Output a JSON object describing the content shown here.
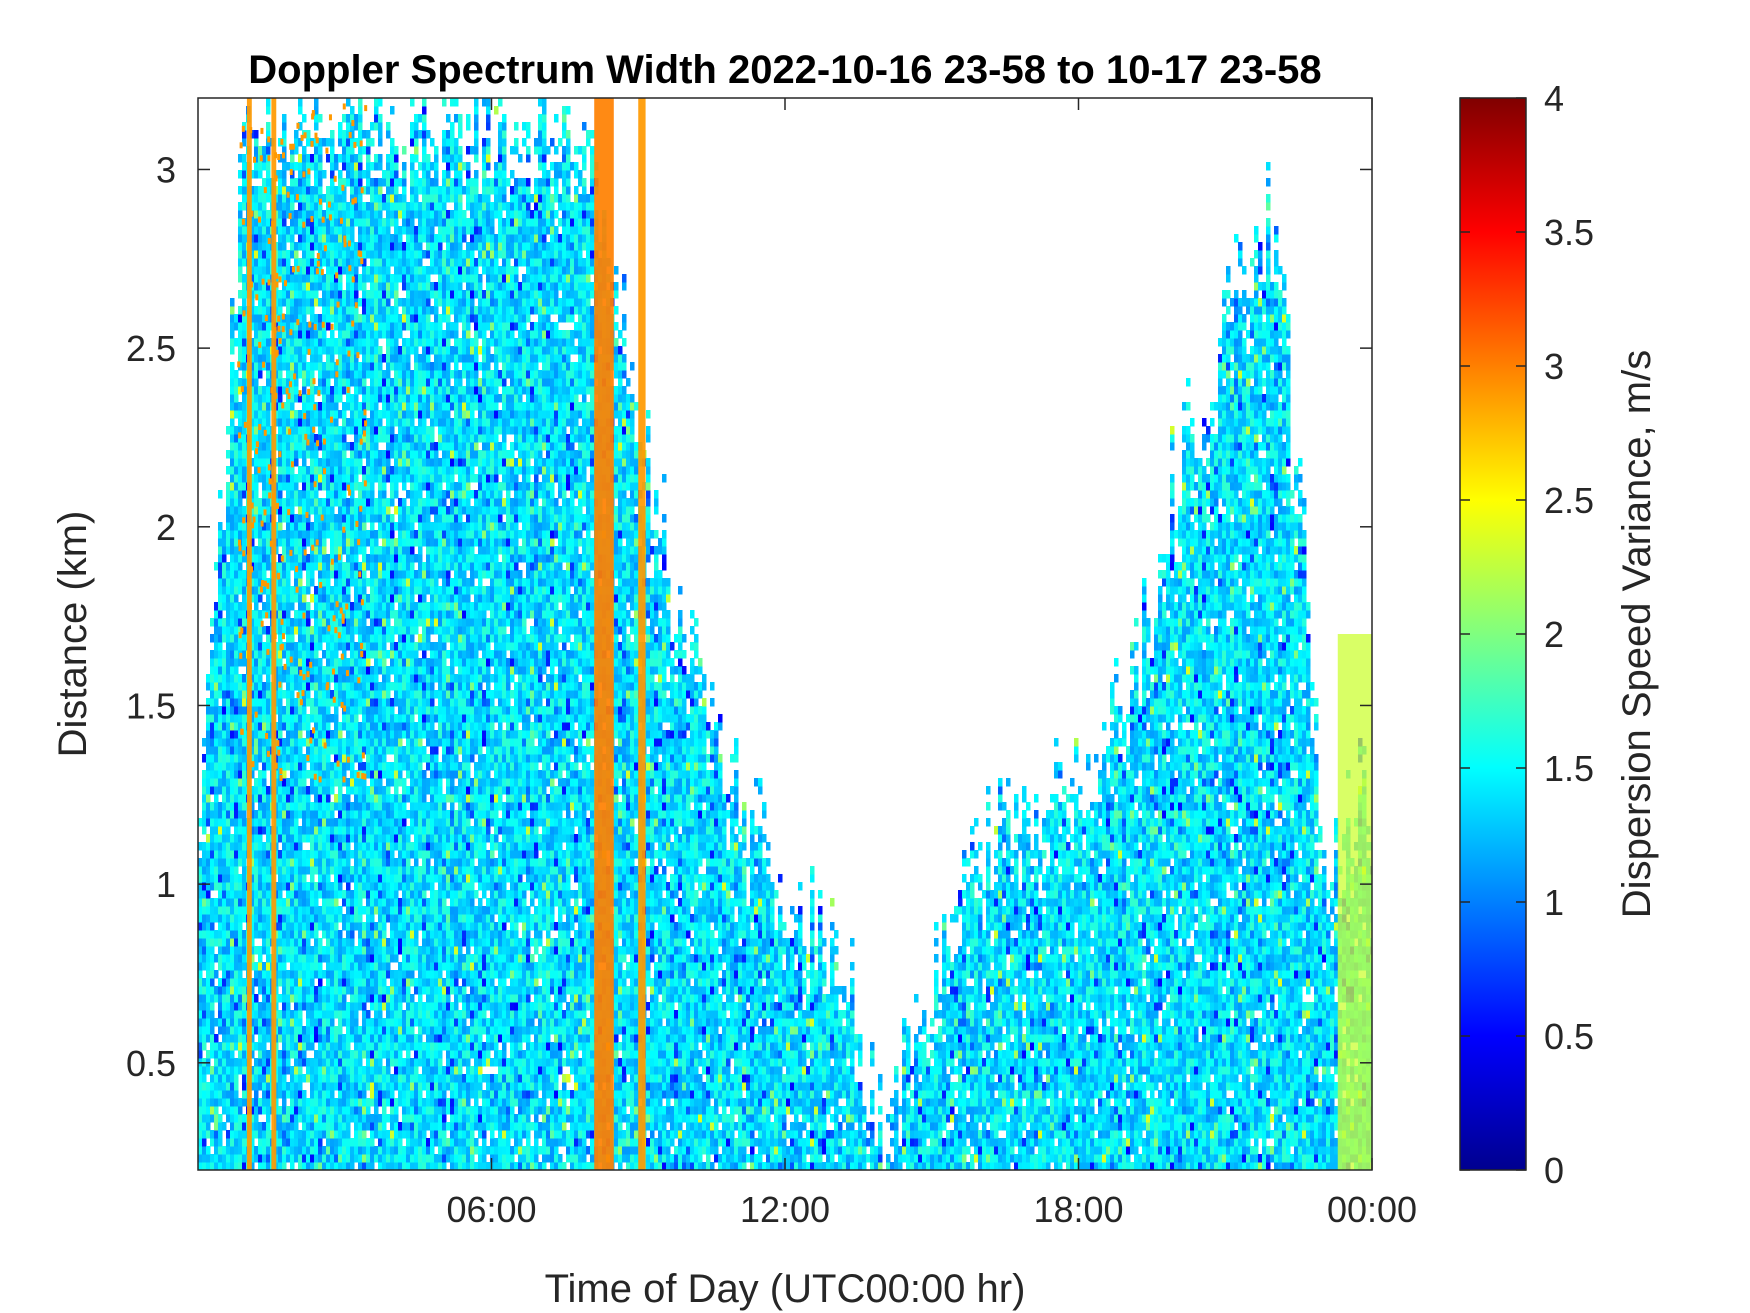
{
  "chart_data": {
    "type": "heatmap",
    "title": "Doppler Spectrum Width 2022-10-16 23-58 to 10-17 23-58",
    "xlabel": "Time of Day (UTC00:00 hr)",
    "ylabel": "Distance (km)",
    "colorbar_label": "Dispersion Speed Variance, m/s",
    "colormap": "jet",
    "xlim_hours": [
      0,
      24
    ],
    "ylim": [
      0.2,
      3.2
    ],
    "clim": [
      0,
      4
    ],
    "x_ticks": [
      {
        "value": 6,
        "label": "06:00"
      },
      {
        "value": 12,
        "label": "12:00"
      },
      {
        "value": 18,
        "label": "18:00"
      },
      {
        "value": 24,
        "label": "00:00"
      }
    ],
    "y_ticks": [
      {
        "value": 0.5,
        "label": "0.5"
      },
      {
        "value": 1,
        "label": "1"
      },
      {
        "value": 1.5,
        "label": "1.5"
      },
      {
        "value": 2,
        "label": "2"
      },
      {
        "value": 2.5,
        "label": "2.5"
      },
      {
        "value": 3,
        "label": "3"
      }
    ],
    "colorbar_ticks": [
      {
        "value": 0,
        "label": "0"
      },
      {
        "value": 0.5,
        "label": "0.5"
      },
      {
        "value": 1,
        "label": "1"
      },
      {
        "value": 1.5,
        "label": "1.5"
      },
      {
        "value": 2,
        "label": "2"
      },
      {
        "value": 2.5,
        "label": "2.5"
      },
      {
        "value": 3,
        "label": "3"
      },
      {
        "value": 3.5,
        "label": "3.5"
      },
      {
        "value": 4,
        "label": "4"
      }
    ],
    "data_top_km_by_hour": [
      {
        "hour": 0,
        "top_km": 1.1
      },
      {
        "hour": 1,
        "top_km": 3.2
      },
      {
        "hour": 2,
        "top_km": 3.2
      },
      {
        "hour": 3,
        "top_km": 3.2
      },
      {
        "hour": 4,
        "top_km": 3.2
      },
      {
        "hour": 5,
        "top_km": 3.2
      },
      {
        "hour": 6,
        "top_km": 3.2
      },
      {
        "hour": 7,
        "top_km": 3.2
      },
      {
        "hour": 8,
        "top_km": 3.2
      },
      {
        "hour": 9,
        "top_km": 2.3
      },
      {
        "hour": 10,
        "top_km": 1.7
      },
      {
        "hour": 11,
        "top_km": 1.3
      },
      {
        "hour": 12,
        "top_km": 1.0
      },
      {
        "hour": 13,
        "top_km": 0.9
      },
      {
        "hour": 14,
        "top_km": 0.3
      },
      {
        "hour": 15,
        "top_km": 0.8
      },
      {
        "hour": 16,
        "top_km": 1.1
      },
      {
        "hour": 17,
        "top_km": 1.2
      },
      {
        "hour": 18,
        "top_km": 1.4
      },
      {
        "hour": 19,
        "top_km": 1.6
      },
      {
        "hour": 20,
        "top_km": 2.2
      },
      {
        "hour": 21,
        "top_km": 2.6
      },
      {
        "hour": 22,
        "top_km": 3.0
      },
      {
        "hour": 23,
        "top_km": 1.1
      },
      {
        "hour": 24,
        "top_km": 1.3
      }
    ],
    "typical_value": 1.4,
    "orange_bands_hours": [
      {
        "start": 1.0,
        "end": 1.1,
        "value": 2.9
      },
      {
        "start": 1.5,
        "end": 1.6,
        "value": 2.9
      },
      {
        "start": 8.1,
        "end": 8.5,
        "value": 3.0
      },
      {
        "start": 9.0,
        "end": 9.15,
        "value": 2.9
      }
    ],
    "yellow_band_hours": {
      "start": 23.3,
      "end": 24.0,
      "top_km": 1.7,
      "value": 2.3
    }
  }
}
